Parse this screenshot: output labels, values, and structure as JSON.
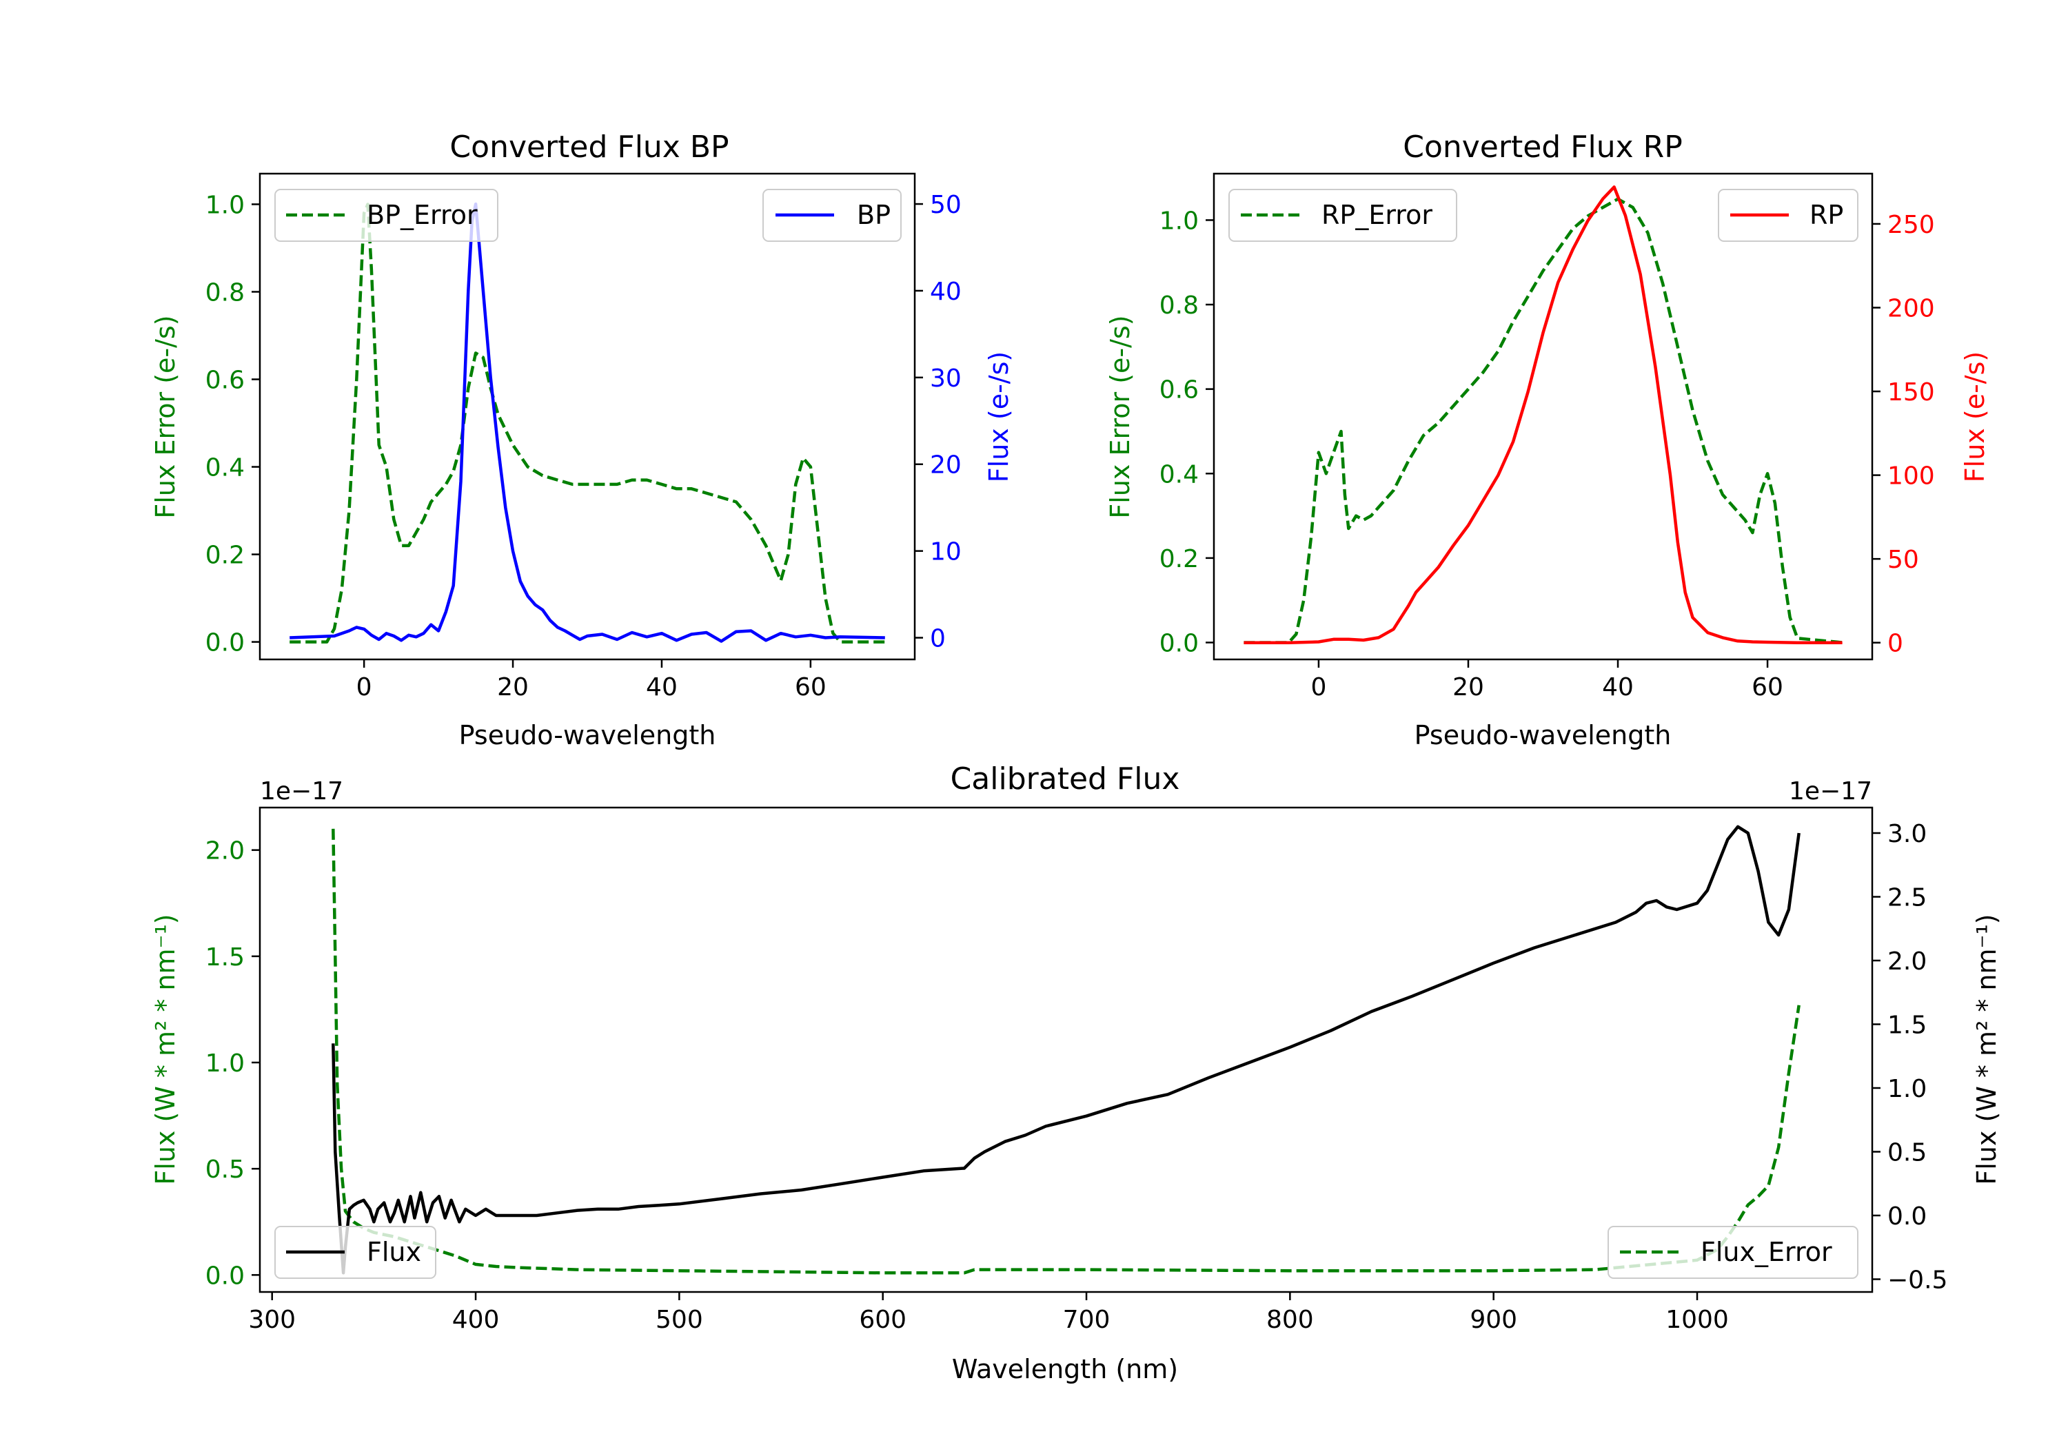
{
  "colors": {
    "green": "#008000",
    "blue": "#0000ff",
    "red": "#ff0000",
    "black": "#000000"
  },
  "chart_data": [
    {
      "type": "line",
      "title": "Converted Flux BP",
      "xlabel": "Pseudo-wavelength",
      "ylabel_left": "Flux Error (e-/s)",
      "ylabel_right": "Flux (e-/s)",
      "xlim": [
        -14,
        74
      ],
      "ylim_left": [
        -0.04,
        1.07
      ],
      "ylim_right": [
        -2.5,
        53.5
      ],
      "xticks": [
        "0",
        "20",
        "40",
        "60"
      ],
      "xtick_values": [
        0,
        20,
        40,
        60
      ],
      "yticks_left": [
        "0.0",
        "0.2",
        "0.4",
        "0.6",
        "0.8",
        "1.0"
      ],
      "ytick_values_left": [
        0,
        0.2,
        0.4,
        0.6,
        0.8,
        1.0
      ],
      "yticks_right": [
        "0",
        "10",
        "20",
        "30",
        "40",
        "50"
      ],
      "ytick_values_right": [
        0,
        10,
        20,
        30,
        40,
        50
      ],
      "legend_left": "BP_Error",
      "legend_right": "BP",
      "series_error": {
        "name": "BP_Error",
        "x": [
          -10,
          -5,
          -4,
          -3,
          -2,
          -1,
          0,
          0.5,
          1,
          2,
          3,
          4,
          5,
          6,
          7,
          8,
          9,
          10,
          11,
          12,
          13,
          14,
          15,
          16,
          17,
          18,
          20,
          22,
          24,
          26,
          28,
          30,
          34,
          36,
          38,
          40,
          42,
          44,
          46,
          48,
          50,
          52,
          53,
          54,
          55,
          56,
          57,
          58,
          59,
          60,
          61,
          62,
          63,
          64,
          65,
          70
        ],
        "y": [
          0.0,
          0.0,
          0.03,
          0.12,
          0.3,
          0.6,
          0.98,
          1.0,
          0.85,
          0.45,
          0.4,
          0.28,
          0.22,
          0.22,
          0.25,
          0.28,
          0.32,
          0.34,
          0.36,
          0.39,
          0.45,
          0.58,
          0.66,
          0.65,
          0.58,
          0.52,
          0.45,
          0.4,
          0.38,
          0.37,
          0.36,
          0.36,
          0.36,
          0.37,
          0.37,
          0.36,
          0.35,
          0.35,
          0.34,
          0.33,
          0.32,
          0.28,
          0.25,
          0.22,
          0.18,
          0.14,
          0.2,
          0.36,
          0.42,
          0.4,
          0.25,
          0.1,
          0.02,
          0.0,
          0.0,
          0.0
        ]
      },
      "series_flux": {
        "name": "BP",
        "x": [
          -10,
          -4,
          -2,
          -1,
          0,
          1,
          2,
          3,
          4,
          5,
          6,
          7,
          8,
          9,
          10,
          11,
          12,
          13,
          14,
          14.5,
          15,
          15.5,
          16,
          17,
          18,
          19,
          20,
          21,
          22,
          23,
          24,
          25,
          26,
          27,
          28,
          29,
          30,
          32,
          34,
          36,
          38,
          40,
          42,
          44,
          46,
          48,
          50,
          52,
          54,
          56,
          58,
          60,
          62,
          64,
          70
        ],
        "y": [
          0,
          0.2,
          0.8,
          1.2,
          1.0,
          0.3,
          -0.2,
          0.5,
          0.2,
          -0.3,
          0.3,
          0.1,
          0.5,
          1.5,
          0.8,
          3.0,
          6.0,
          18.0,
          40.0,
          48.0,
          50.0,
          45.0,
          40.0,
          30.0,
          22.0,
          15.0,
          10.0,
          6.5,
          4.8,
          3.8,
          3.2,
          2.0,
          1.2,
          0.8,
          0.3,
          -0.2,
          0.2,
          0.4,
          -0.2,
          0.6,
          0.1,
          0.5,
          -0.3,
          0.4,
          0.6,
          -0.4,
          0.7,
          0.8,
          -0.3,
          0.5,
          0.1,
          0.3,
          0.0,
          0.1,
          0.0
        ]
      }
    },
    {
      "type": "line",
      "title": "Converted Flux RP",
      "xlabel": "Pseudo-wavelength",
      "ylabel_left": "Flux Error (e-/s)",
      "ylabel_right": "Flux (e-/s)",
      "xlim": [
        -14,
        74
      ],
      "ylim_left": [
        -0.04,
        1.11
      ],
      "ylim_right": [
        -10,
        280
      ],
      "xticks": [
        "0",
        "20",
        "40",
        "60"
      ],
      "xtick_values": [
        0,
        20,
        40,
        60
      ],
      "yticks_left": [
        "0.0",
        "0.2",
        "0.4",
        "0.6",
        "0.8",
        "1.0"
      ],
      "ytick_values_left": [
        0,
        0.2,
        0.4,
        0.6,
        0.8,
        1.0
      ],
      "yticks_right": [
        "0",
        "50",
        "100",
        "150",
        "200",
        "250"
      ],
      "ytick_values_right": [
        0,
        50,
        100,
        150,
        200,
        250
      ],
      "legend_left": "RP_Error",
      "legend_right": "RP",
      "series_error": {
        "name": "RP_Error",
        "x": [
          -10,
          -4,
          -3,
          -2,
          -1,
          0,
          1,
          2,
          3,
          3.5,
          4,
          5,
          6,
          7,
          8,
          10,
          12,
          14,
          16,
          18,
          20,
          22,
          24,
          26,
          28,
          30,
          32,
          34,
          36,
          38,
          40,
          42,
          44,
          46,
          48,
          50,
          52,
          54,
          56,
          57,
          58,
          59,
          60,
          61,
          62,
          63,
          64,
          70
        ],
        "y": [
          0.0,
          0.0,
          0.02,
          0.1,
          0.25,
          0.45,
          0.4,
          0.45,
          0.5,
          0.35,
          0.27,
          0.3,
          0.29,
          0.3,
          0.32,
          0.36,
          0.43,
          0.49,
          0.52,
          0.56,
          0.6,
          0.64,
          0.69,
          0.76,
          0.82,
          0.88,
          0.93,
          0.98,
          1.01,
          1.03,
          1.05,
          1.03,
          0.97,
          0.85,
          0.7,
          0.55,
          0.43,
          0.35,
          0.31,
          0.29,
          0.26,
          0.35,
          0.4,
          0.33,
          0.18,
          0.06,
          0.01,
          0.0
        ]
      },
      "series_flux": {
        "name": "RP",
        "x": [
          -10,
          -4,
          0,
          2,
          4,
          6,
          8,
          10,
          11,
          12,
          13,
          14,
          16,
          18,
          20,
          22,
          24,
          26,
          28,
          30,
          32,
          34,
          36,
          38,
          39.5,
          41,
          43,
          45,
          47,
          48,
          49,
          50,
          52,
          54,
          56,
          58,
          60,
          62,
          64,
          70
        ],
        "y": [
          0,
          0,
          0.5,
          2,
          2,
          1.5,
          3,
          8,
          15,
          22,
          30,
          35,
          45,
          58,
          70,
          85,
          100,
          120,
          150,
          185,
          215,
          235,
          252,
          265,
          272,
          255,
          220,
          165,
          100,
          60,
          30,
          15,
          6,
          3,
          1,
          0.5,
          0.3,
          0.1,
          0,
          0
        ]
      }
    },
    {
      "type": "line",
      "title": "Calibrated Flux",
      "xlabel": "Wavelength (nm)",
      "ylabel_left": "Flux (W * m² * nm⁻¹)",
      "ylabel_right": "Flux (W * m² * nm⁻¹)",
      "offset_left": "1e−17",
      "offset_right": "1e−17",
      "xlim": [
        294,
        1086
      ],
      "ylim_left": [
        -0.08,
        2.2
      ],
      "ylim_right": [
        -0.6,
        3.2
      ],
      "xticks": [
        "300",
        "400",
        "500",
        "600",
        "700",
        "800",
        "900",
        "1000"
      ],
      "xtick_values": [
        300,
        400,
        500,
        600,
        700,
        800,
        900,
        1000
      ],
      "yticks_left": [
        "0.0",
        "0.5",
        "1.0",
        "1.5",
        "2.0"
      ],
      "ytick_values_left": [
        0,
        0.5,
        1.0,
        1.5,
        2.0
      ],
      "yticks_right": [
        "−0.5",
        "0.0",
        "0.5",
        "1.0",
        "1.5",
        "2.0",
        "2.5",
        "3.0"
      ],
      "ytick_values_right": [
        -0.5,
        0,
        0.5,
        1.0,
        1.5,
        2.0,
        2.5,
        3.0
      ],
      "legend_left": "Flux",
      "legend_right": "Flux_Error",
      "series_error": {
        "name": "Flux_Error",
        "x": [
          330,
          331,
          332,
          334,
          336,
          340,
          345,
          350,
          360,
          370,
          380,
          390,
          400,
          410,
          420,
          450,
          500,
          550,
          600,
          640,
          645,
          700,
          800,
          900,
          950,
          1000,
          1010,
          1015,
          1020,
          1025,
          1030,
          1035,
          1040,
          1045,
          1050
        ],
        "y": [
          2.1,
          1.5,
          0.9,
          0.5,
          0.3,
          0.25,
          0.22,
          0.2,
          0.18,
          0.15,
          0.12,
          0.09,
          0.05,
          0.04,
          0.035,
          0.025,
          0.02,
          0.015,
          0.01,
          0.01,
          0.025,
          0.025,
          0.02,
          0.02,
          0.025,
          0.07,
          0.12,
          0.18,
          0.25,
          0.33,
          0.37,
          0.42,
          0.6,
          0.95,
          1.27
        ]
      },
      "series_flux": {
        "name": "Flux",
        "x": [
          330,
          331,
          333,
          335,
          336,
          338,
          340,
          342,
          345,
          348,
          350,
          352,
          355,
          358,
          360,
          362,
          365,
          368,
          370,
          373,
          376,
          379,
          382,
          385,
          388,
          392,
          395,
          400,
          405,
          410,
          420,
          430,
          440,
          450,
          460,
          470,
          480,
          490,
          500,
          520,
          540,
          560,
          580,
          600,
          620,
          640,
          645,
          650,
          660,
          670,
          680,
          700,
          720,
          740,
          760,
          780,
          800,
          820,
          840,
          860,
          880,
          900,
          920,
          940,
          960,
          970,
          975,
          980,
          985,
          990,
          1000,
          1005,
          1010,
          1015,
          1020,
          1025,
          1030,
          1035,
          1040,
          1045,
          1050
        ],
        "y": [
          1.35,
          0.5,
          0.0,
          -0.45,
          -0.25,
          0.05,
          0.08,
          0.1,
          0.12,
          0.05,
          -0.05,
          0.05,
          0.1,
          -0.05,
          0.02,
          0.12,
          -0.05,
          0.15,
          -0.02,
          0.18,
          -0.05,
          0.1,
          0.15,
          -0.02,
          0.12,
          -0.05,
          0.05,
          0.0,
          0.05,
          0.0,
          0.0,
          0.0,
          0.02,
          0.04,
          0.05,
          0.05,
          0.07,
          0.08,
          0.09,
          0.13,
          0.17,
          0.2,
          0.25,
          0.3,
          0.35,
          0.37,
          0.45,
          0.5,
          0.58,
          0.63,
          0.7,
          0.78,
          0.88,
          0.95,
          1.08,
          1.2,
          1.32,
          1.45,
          1.6,
          1.72,
          1.85,
          1.98,
          2.1,
          2.2,
          2.3,
          2.38,
          2.45,
          2.47,
          2.42,
          2.4,
          2.45,
          2.55,
          2.75,
          2.95,
          3.05,
          3.0,
          2.7,
          2.3,
          2.2,
          2.4,
          3.0
        ]
      }
    }
  ]
}
